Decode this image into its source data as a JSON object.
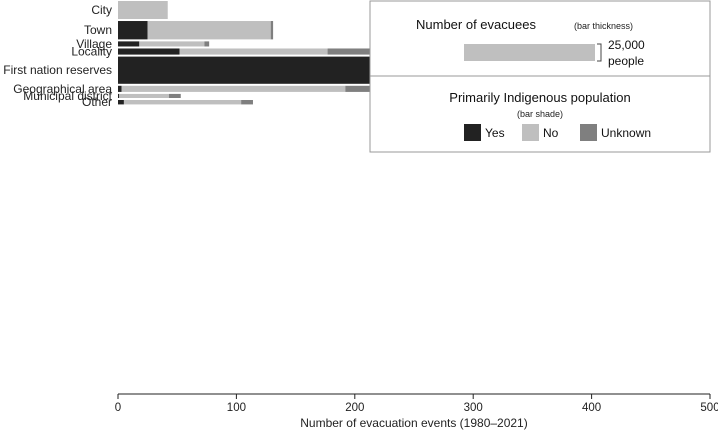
{
  "chart_data": {
    "type": "bar",
    "orientation": "horizontal",
    "stacked": true,
    "bar_thickness_encodes": "Number of evacuees",
    "xlabel": "Number of evacuation events (1980–2021)",
    "xlim": [
      0,
      500
    ],
    "xticks": [
      0,
      100,
      200,
      300,
      400,
      500
    ],
    "grid": false,
    "categories": [
      "City",
      "Town",
      "Village",
      "Locality",
      "First nation reserves",
      "Geographical area",
      "Municipal district",
      "Other"
    ],
    "evacuees": [
      26500,
      27000,
      7500,
      9000,
      40000,
      9000,
      6000,
      6500
    ],
    "series": [
      {
        "name": "Yes",
        "color": "#222222",
        "values": [
          0,
          25,
          18,
          52,
          483,
          3,
          1,
          5
        ]
      },
      {
        "name": "No",
        "color": "#bfbfbf",
        "values": [
          42,
          104,
          55,
          125,
          0,
          189,
          42,
          99
        ]
      },
      {
        "name": "Unknown",
        "color": "#7f7f7f",
        "values": [
          0,
          2,
          4,
          72,
          0,
          59,
          10,
          10
        ]
      }
    ],
    "legend": {
      "placement": "top-right",
      "size_title": "Number of evacuees",
      "size_subtitle": "(bar thickness)",
      "size_reference_value": 25000,
      "size_reference_label_line1": "25,000",
      "size_reference_label_line2": "people",
      "shade_title": "Primarily Indigenous population",
      "shade_subtitle": "(bar shade)"
    }
  }
}
